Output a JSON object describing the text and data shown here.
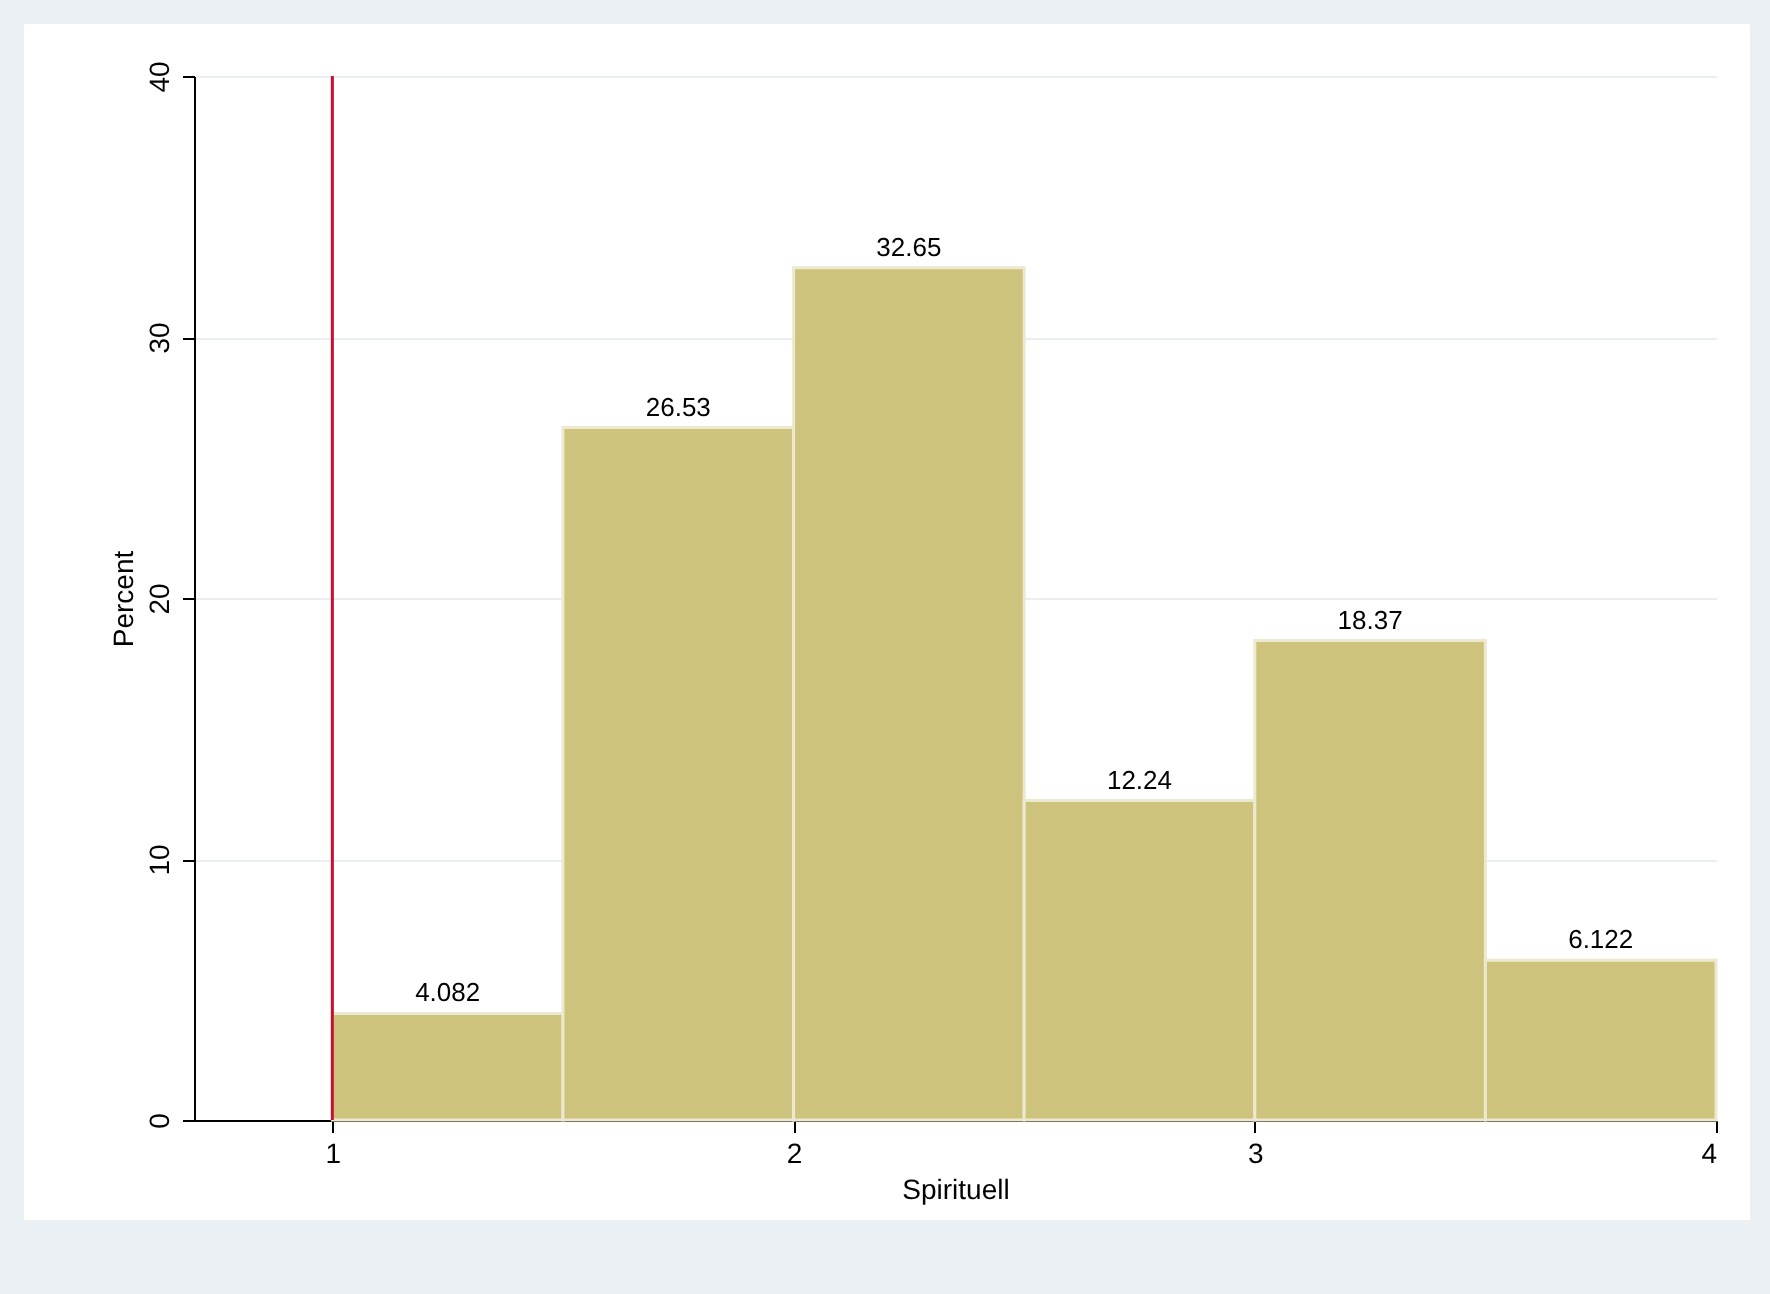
{
  "chart_data": {
    "type": "histogram",
    "xlabel": "Spirituell",
    "ylabel": "Percent",
    "bins": [
      1,
      1.5,
      2,
      2.5,
      3,
      3.5,
      4
    ],
    "values": [
      4.082,
      26.53,
      32.65,
      12.24,
      18.37,
      6.122
    ],
    "color": "#cdc37d",
    "data_labels": true,
    "xlim": [
      0.7,
      4
    ],
    "xticks": [
      1,
      2,
      3,
      4
    ],
    "ylim": [
      0,
      40
    ],
    "yticks": [
      0,
      10,
      20,
      30,
      40
    ],
    "grid": "y",
    "ref_lines": [
      {
        "axis": "x",
        "value": 1,
        "color": "#c8102e"
      }
    ]
  }
}
